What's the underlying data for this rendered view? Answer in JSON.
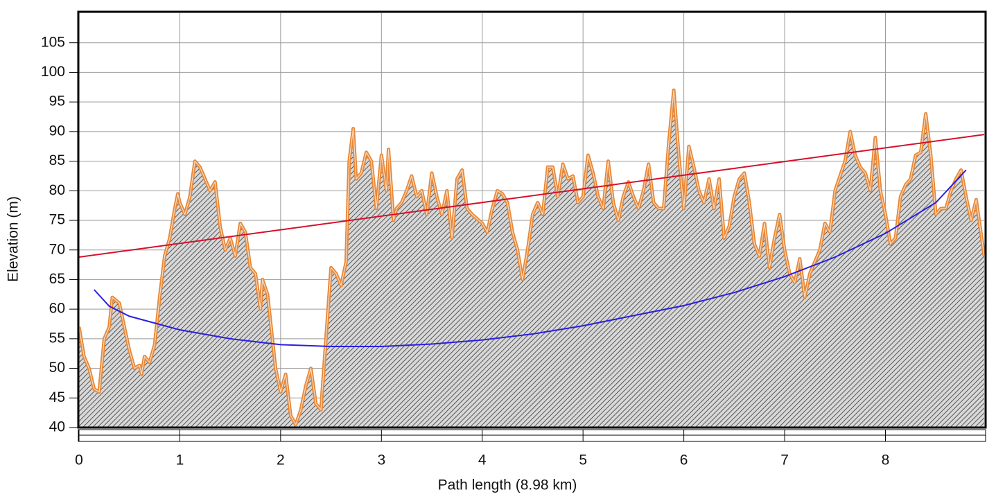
{
  "chart_data": {
    "type": "line",
    "xlabel": "Path length (8.98 km)",
    "ylabel": "Elevation (m)",
    "xlim": [
      0,
      8.98
    ],
    "ylim": [
      40,
      110
    ],
    "xticks": [
      0,
      1,
      2,
      3,
      4,
      5,
      6,
      7,
      8
    ],
    "yticks": [
      40,
      45,
      50,
      55,
      60,
      65,
      70,
      75,
      80,
      85,
      90,
      95,
      100,
      105
    ],
    "grid": true,
    "series": [
      {
        "color": "#e8893a",
        "fill": "hatch",
        "x": [
          0,
          0.05,
          0.1,
          0.15,
          0.2,
          0.25,
          0.3,
          0.33,
          0.4,
          0.45,
          0.5,
          0.55,
          0.6,
          0.62,
          0.65,
          0.7,
          0.75,
          0.8,
          0.85,
          0.9,
          0.95,
          0.98,
          1.0,
          1.05,
          1.1,
          1.15,
          1.2,
          1.25,
          1.3,
          1.35,
          1.4,
          1.45,
          1.5,
          1.55,
          1.6,
          1.65,
          1.7,
          1.75,
          1.8,
          1.82,
          1.87,
          1.95,
          2.0,
          2.05,
          2.1,
          2.15,
          2.2,
          2.25,
          2.3,
          2.35,
          2.4,
          2.45,
          2.5,
          2.55,
          2.6,
          2.65,
          2.68,
          2.72,
          2.75,
          2.8,
          2.85,
          2.9,
          2.95,
          3.0,
          3.05,
          3.07,
          3.12,
          3.15,
          3.2,
          3.25,
          3.3,
          3.35,
          3.4,
          3.45,
          3.5,
          3.55,
          3.6,
          3.65,
          3.7,
          3.75,
          3.8,
          3.85,
          3.9,
          4.0,
          4.05,
          4.1,
          4.15,
          4.2,
          4.25,
          4.3,
          4.35,
          4.4,
          4.45,
          4.5,
          4.55,
          4.6,
          4.65,
          4.7,
          4.75,
          4.8,
          4.85,
          4.9,
          4.95,
          5.0,
          5.05,
          5.1,
          5.15,
          5.2,
          5.25,
          5.3,
          5.35,
          5.4,
          5.45,
          5.5,
          5.55,
          5.6,
          5.65,
          5.7,
          5.75,
          5.8,
          5.85,
          5.9,
          5.95,
          6.0,
          6.05,
          6.1,
          6.15,
          6.2,
          6.25,
          6.3,
          6.35,
          6.4,
          6.45,
          6.5,
          6.55,
          6.6,
          6.65,
          6.7,
          6.75,
          6.8,
          6.85,
          6.9,
          6.95,
          7.0,
          7.05,
          7.1,
          7.15,
          7.2,
          7.25,
          7.3,
          7.35,
          7.4,
          7.45,
          7.5,
          7.55,
          7.6,
          7.65,
          7.7,
          7.75,
          7.8,
          7.85,
          7.9,
          7.95,
          8.0,
          8.05,
          8.1,
          8.15,
          8.2,
          8.25,
          8.3,
          8.35,
          8.4,
          8.45,
          8.5,
          8.55,
          8.6,
          8.65,
          8.7,
          8.75,
          8.8,
          8.85,
          8.9,
          8.98
        ],
        "values": [
          57,
          52,
          50,
          46.5,
          46,
          55,
          57,
          62,
          61,
          57,
          53,
          50,
          50.5,
          49,
          52,
          51,
          54,
          62,
          69,
          72,
          77,
          79.5,
          78,
          76,
          79,
          85,
          84,
          82,
          80,
          81.5,
          74,
          70,
          72,
          69,
          74.5,
          73,
          67,
          66,
          60,
          65,
          62.5,
          50,
          46,
          49,
          42,
          40.5,
          43,
          47,
          50,
          44,
          43,
          55,
          67,
          66,
          64,
          68,
          85,
          90.5,
          82,
          83,
          86.5,
          85,
          77,
          86,
          80,
          87,
          75,
          77,
          78,
          80,
          82.5,
          79,
          80,
          76,
          83,
          79,
          76,
          80,
          72,
          82,
          83.5,
          77,
          76,
          74.5,
          73,
          77,
          80,
          79.5,
          78,
          73,
          70,
          65,
          70,
          76,
          78,
          76,
          84,
          84,
          79,
          84.5,
          82,
          82.5,
          78,
          79,
          86,
          83,
          79,
          77,
          85,
          78,
          75,
          79,
          81.5,
          79,
          77,
          80,
          84.5,
          78,
          77,
          77,
          88,
          97,
          86,
          77,
          87.5,
          84,
          80,
          78,
          82,
          77,
          82,
          72,
          74,
          79,
          82,
          83,
          78,
          71,
          69,
          74.5,
          67,
          72,
          76,
          70,
          66,
          64.5,
          68.5,
          62,
          66,
          68,
          70,
          74.5,
          73,
          80,
          82.5,
          85,
          90,
          86,
          84,
          83,
          80,
          89,
          80,
          76,
          71,
          72,
          79,
          81,
          82,
          86,
          86.5,
          93,
          86,
          76,
          77,
          77,
          80,
          82,
          83.5,
          79,
          75,
          78.5,
          69
        ]
      },
      {
        "color": "#d6102a",
        "x": [
          0,
          8.98
        ],
        "values": [
          68.8,
          89.5
        ]
      },
      {
        "color": "#2a1fe0",
        "x": [
          0.15,
          0.3,
          0.5,
          1,
          1.5,
          2,
          2.5,
          3,
          3.5,
          4,
          4.5,
          5,
          5.5,
          6,
          6.5,
          7,
          7.5,
          8,
          8.5,
          8.8
        ],
        "values": [
          63.3,
          60.5,
          58.8,
          56.5,
          55,
          54,
          53.7,
          53.7,
          54.1,
          54.8,
          55.8,
          57.2,
          58.9,
          60.6,
          62.8,
          65.5,
          68.8,
          72.8,
          78,
          83.5
        ]
      }
    ]
  }
}
